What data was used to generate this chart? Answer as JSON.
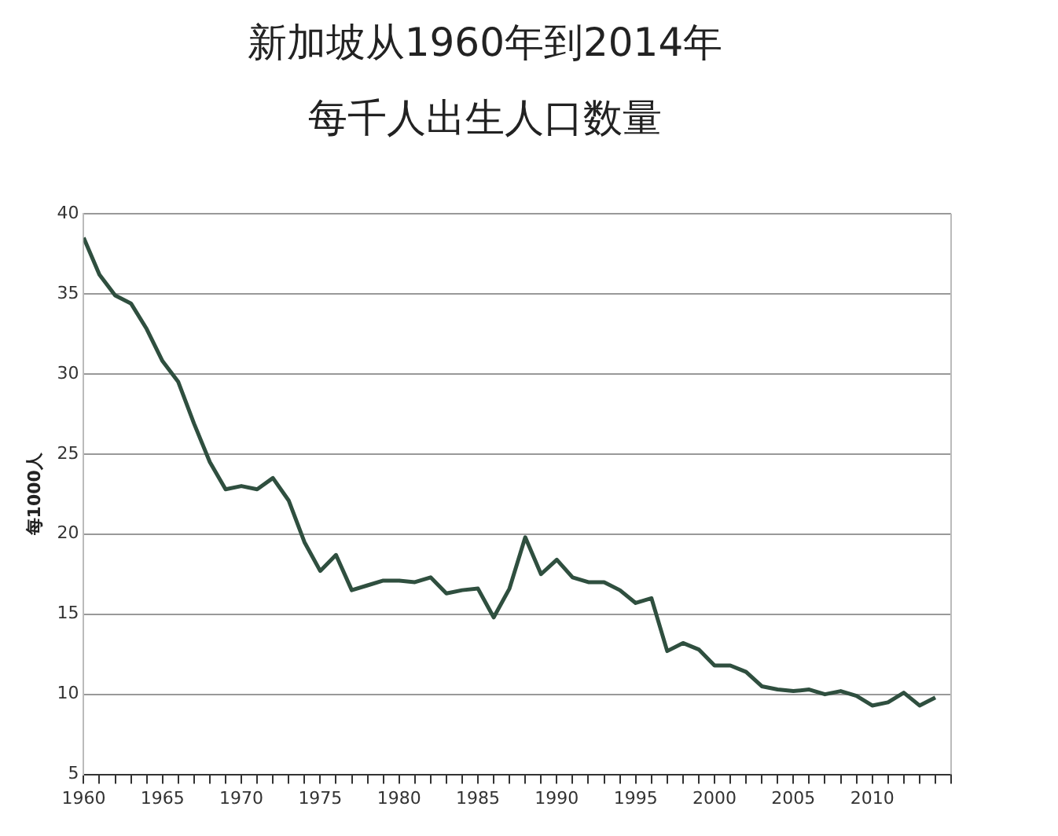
{
  "chart_data": {
    "type": "line",
    "title": "新加坡从1960年到2014年",
    "subtitle": "每千人出生人口数量",
    "ylabel": "每1000人",
    "x": [
      1960,
      1961,
      1962,
      1963,
      1964,
      1965,
      1966,
      1967,
      1968,
      1969,
      1970,
      1971,
      1972,
      1973,
      1974,
      1975,
      1976,
      1977,
      1978,
      1979,
      1980,
      1981,
      1982,
      1983,
      1984,
      1985,
      1986,
      1987,
      1988,
      1989,
      1990,
      1991,
      1992,
      1993,
      1994,
      1995,
      1996,
      1997,
      1998,
      1999,
      2000,
      2001,
      2002,
      2003,
      2004,
      2005,
      2006,
      2007,
      2008,
      2009,
      2010,
      2011,
      2012,
      2013,
      2014
    ],
    "series": [
      {
        "color": "#2f4f3f",
        "values": [
          38.5,
          36.2,
          34.9,
          34.4,
          32.8,
          30.8,
          29.5,
          26.9,
          24.5,
          22.8,
          23.0,
          22.8,
          23.5,
          22.1,
          19.5,
          17.7,
          18.7,
          16.5,
          16.8,
          17.1,
          17.1,
          17.0,
          17.3,
          16.3,
          16.5,
          16.6,
          14.8,
          16.6,
          19.8,
          17.5,
          18.4,
          17.3,
          17.0,
          17.0,
          16.5,
          15.7,
          16.0,
          12.7,
          13.2,
          12.8,
          11.8,
          11.8,
          11.4,
          10.5,
          10.3,
          10.2,
          10.3,
          10.0,
          10.2,
          9.9,
          9.3,
          9.5,
          10.1,
          9.3,
          9.8
        ]
      }
    ],
    "xlim": [
      1960,
      2015
    ],
    "xticks": [
      1960,
      {
        "value": 1961,
        "label": null
      },
      {
        "value": 1962,
        "label": null
      },
      {
        "value": 1963,
        "label": null
      },
      {
        "value": 1964,
        "label": null
      },
      1965,
      {
        "value": 1966,
        "label": null
      },
      {
        "value": 1967,
        "label": null
      },
      {
        "value": 1968,
        "label": null
      },
      {
        "value": 1969,
        "label": null
      },
      1970,
      {
        "value": 1971,
        "label": null
      },
      {
        "value": 1972,
        "label": null
      },
      {
        "value": 1973,
        "label": null
      },
      {
        "value": 1974,
        "label": null
      },
      1975,
      {
        "value": 1976,
        "label": null
      },
      {
        "value": 1977,
        "label": null
      },
      {
        "value": 1978,
        "label": null
      },
      {
        "value": 1979,
        "label": null
      },
      1980,
      {
        "value": 1981,
        "label": null
      },
      {
        "value": 1982,
        "label": null
      },
      {
        "value": 1983,
        "label": null
      },
      {
        "value": 1984,
        "label": null
      },
      1985,
      {
        "value": 1986,
        "label": null
      },
      {
        "value": 1987,
        "label": null
      },
      {
        "value": 1988,
        "label": null
      },
      {
        "value": 1989,
        "label": null
      },
      1990,
      {
        "value": 1991,
        "label": null
      },
      {
        "value": 1992,
        "label": null
      },
      {
        "value": 1993,
        "label": null
      },
      {
        "value": 1994,
        "label": null
      },
      1995,
      {
        "value": 1996,
        "label": null
      },
      {
        "value": 1997,
        "label": null
      },
      {
        "value": 1998,
        "label": null
      },
      {
        "value": 1999,
        "label": null
      },
      2000,
      {
        "value": 2001,
        "label": null
      },
      {
        "value": 2002,
        "label": null
      },
      {
        "value": 2003,
        "label": null
      },
      {
        "value": 2004,
        "label": null
      },
      2005,
      {
        "value": 2006,
        "label": null
      },
      {
        "value": 2007,
        "label": null
      },
      {
        "value": 2008,
        "label": null
      },
      {
        "value": 2009,
        "label": null
      },
      2010,
      {
        "value": 2011,
        "label": null
      },
      {
        "value": 2012,
        "label": null
      },
      {
        "value": 2013,
        "label": null
      },
      {
        "value": 2014,
        "label": null
      },
      {
        "value": 2015,
        "label": null
      }
    ],
    "ylim": [
      5,
      40
    ],
    "yticks": [
      5,
      10,
      15,
      20,
      25,
      30,
      35,
      40
    ],
    "grid": "y",
    "legend": false,
    "marker": "none",
    "line_style": "solid"
  }
}
